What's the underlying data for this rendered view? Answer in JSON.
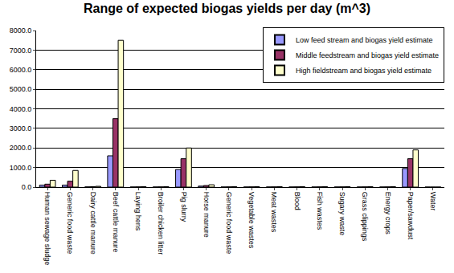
{
  "chart_data": {
    "type": "bar",
    "title": "Range of expected biogas yields per day (m^3)",
    "categories": [
      "Human sewage sludge",
      "Generic food waste",
      "Dairy cattle manure",
      "Beef cattle manure",
      "Laying hens",
      "Broiler chicken litter",
      "Pig slurry",
      "Horse manure",
      "Generic food waste",
      "Vegetable wastes",
      "Meat wastes",
      "Blood",
      "Fish wastes",
      "Sugary waste",
      "Grass clippings",
      "Energy crops",
      "Paper/sawdust",
      "Water"
    ],
    "series": [
      {
        "name": "Low feed stream and biogas yield estimate",
        "color": "#9999FF",
        "values": [
          100,
          100,
          10,
          1600,
          5,
          5,
          900,
          50,
          5,
          5,
          5,
          5,
          5,
          5,
          5,
          5,
          950,
          0
        ]
      },
      {
        "name": "Middle feedstream and biogas yield estimate",
        "color": "#993366",
        "values": [
          150,
          300,
          20,
          3500,
          10,
          10,
          1450,
          80,
          10,
          10,
          10,
          10,
          10,
          10,
          10,
          10,
          1450,
          0
        ]
      },
      {
        "name": "High fieldstream and biogas yield estimate",
        "color": "#FFFFCC",
        "values": [
          350,
          850,
          40,
          7500,
          20,
          20,
          2000,
          120,
          20,
          20,
          20,
          20,
          20,
          20,
          20,
          20,
          1900,
          0
        ]
      }
    ],
    "ylim": [
      0,
      8000
    ],
    "yticks": [
      {
        "value": 0,
        "label": "0.0"
      },
      {
        "value": 1000,
        "label": "1000.0"
      },
      {
        "value": 2000,
        "label": "2000.0"
      },
      {
        "value": 3000,
        "label": "3000.0"
      },
      {
        "value": 4000,
        "label": "4000.0"
      },
      {
        "value": 5000,
        "label": "5000.0"
      },
      {
        "value": 6000,
        "label": "6000.0"
      },
      {
        "value": 7000,
        "label": "7000.0"
      },
      {
        "value": 8000,
        "label": "8000.0"
      }
    ],
    "grid": true,
    "legend": "top-right"
  }
}
